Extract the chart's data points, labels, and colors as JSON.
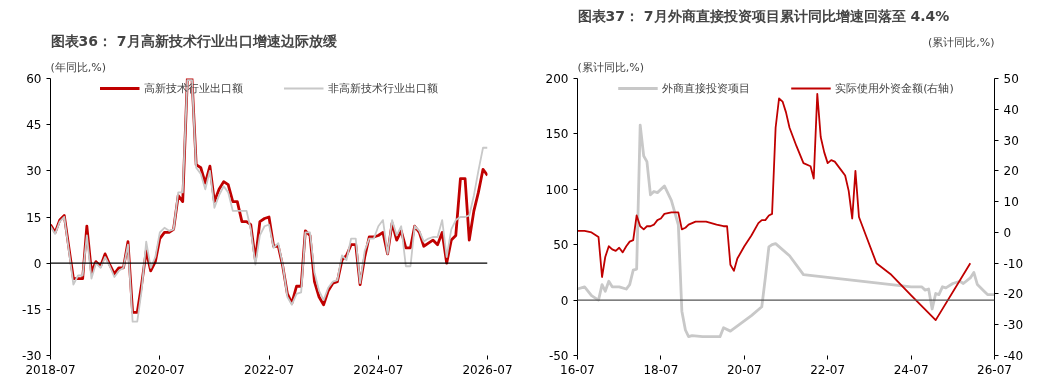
{
  "chart_data": [
    {
      "type": "line",
      "title": "图表36：  7月高新技术行业出口增速边际放缓",
      "ylabel": "(年同比,%)",
      "legend": "top",
      "grid": false,
      "x": [
        "2018-07",
        "2018-08",
        "2018-09",
        "2018-10",
        "2018-11",
        "2018-12",
        "2019-01",
        "2019-02",
        "2019-03",
        "2019-04",
        "2019-05",
        "2019-06",
        "2019-07",
        "2019-08",
        "2019-09",
        "2019-10",
        "2019-11",
        "2019-12",
        "2020-01",
        "2020-02",
        "2020-03",
        "2020-04",
        "2020-05",
        "2020-06",
        "2020-07",
        "2020-08",
        "2020-09",
        "2020-10",
        "2020-11",
        "2020-12",
        "2021-01",
        "2021-02",
        "2021-03",
        "2021-04",
        "2021-05",
        "2021-06",
        "2021-07",
        "2021-08",
        "2021-09",
        "2021-10",
        "2021-11",
        "2021-12",
        "2022-01",
        "2022-02",
        "2022-03",
        "2022-04",
        "2022-05",
        "2022-06",
        "2022-07",
        "2022-08",
        "2022-09",
        "2022-10",
        "2022-11",
        "2022-12",
        "2023-01",
        "2023-02",
        "2023-03",
        "2023-04",
        "2023-05",
        "2023-06",
        "2023-07",
        "2023-08",
        "2023-09",
        "2023-10",
        "2023-11",
        "2023-12",
        "2024-01",
        "2024-02",
        "2024-03",
        "2024-04",
        "2024-05",
        "2024-06",
        "2024-07",
        "2024-08",
        "2024-09",
        "2024-10",
        "2024-11",
        "2024-12",
        "2025-01",
        "2025-02",
        "2025-03",
        "2025-04",
        "2025-05",
        "2025-06",
        "2025-07",
        "2025-08",
        "2025-09",
        "2025-10",
        "2025-11",
        "2025-12",
        "2026-01",
        "2026-02",
        "2026-03",
        "2026-04",
        "2026-05",
        "2026-06",
        "2026-07"
      ],
      "series": [
        {
          "name": "高新技术行业出口额",
          "color": "#c00000",
          "values": [
            12.5,
            10,
            14,
            15.5,
            5,
            -5,
            -5,
            -5,
            12,
            -3,
            0.5,
            -1,
            3,
            -0.5,
            -3.5,
            -1.5,
            -1.5,
            7,
            -16,
            -16,
            -7,
            4,
            -2.5,
            0.5,
            8,
            10,
            10,
            11,
            22,
            20,
            60,
            60,
            32,
            31,
            26,
            31.5,
            20,
            24,
            26.5,
            25.5,
            20,
            20,
            13.5,
            13.5,
            12.5,
            1,
            13.5,
            14.5,
            15,
            5.5,
            5.5,
            -1,
            -10,
            -13,
            -7.5,
            -7.5,
            10.5,
            9,
            -6,
            -11,
            -13.5,
            -9,
            -6.5,
            -6,
            1,
            2.5,
            6,
            6,
            -7,
            2,
            8.5,
            8.5,
            9,
            10,
            3,
            13,
            7.5,
            10.5,
            5,
            5,
            12,
            10,
            5.5,
            6.5,
            7.5,
            6,
            10,
            0,
            7.5,
            9,
            27.5,
            27.5,
            7.5,
            17,
            23,
            30.5,
            28.5
          ]
        },
        {
          "name": "非高新技术行业出口额",
          "color": "#c8c8c8",
          "values": [
            12,
            9.5,
            13.5,
            15,
            4,
            -7,
            -4,
            -4,
            9,
            -5,
            0,
            -1.5,
            2,
            -1,
            -4.5,
            -2.5,
            -1.5,
            6,
            -19,
            -19,
            -9,
            7,
            -1.5,
            2,
            10,
            11.5,
            10.5,
            11,
            23,
            23,
            59.5,
            59.5,
            31,
            29,
            24,
            30,
            18,
            22,
            25,
            23,
            17,
            17,
            17,
            17,
            11,
            -0.5,
            9,
            12,
            12.5,
            5,
            6.5,
            -0.5,
            -11,
            -13.5,
            -10,
            -9.5,
            10,
            10,
            -3,
            -9,
            -12,
            -8,
            -6,
            -5.5,
            2.5,
            1,
            8,
            8,
            -6.5,
            4,
            8,
            8,
            12,
            14,
            3,
            14,
            9,
            12,
            -1,
            -1,
            12,
            10.5,
            7,
            8,
            8.5,
            8.5,
            14,
            2,
            11,
            14,
            15,
            15,
            15.5,
            22,
            30,
            37.5,
            37.5
          ]
        }
      ],
      "xlim": [
        "2018-07",
        "2026-07"
      ],
      "xticks": [
        {
          "value": "2018-07",
          "label": "2018-07"
        },
        {
          "value": "2020-07",
          "label": "2020-07"
        },
        {
          "value": "2022-07",
          "label": "2022-07"
        },
        {
          "value": "2024-07",
          "label": "2024-07"
        },
        {
          "value": "2026-07",
          "label": "2026-07"
        }
      ],
      "ylim": [
        -30,
        60
      ],
      "yticks": [
        -30,
        -15,
        0,
        15,
        30,
        45,
        60
      ],
      "ref_lines": [
        {
          "axis": "y",
          "value": 0,
          "label": null,
          "color": "#000000"
        }
      ]
    },
    {
      "type": "line",
      "title": "图表37：  7月外商直接投资项目累计同比增速回落至 4.4%",
      "ylabel": "(累计同比,%)",
      "y2label": "(累计同比,%)",
      "legend": "top",
      "grid": false,
      "series": [
        {
          "name": "外商直接投资项目",
          "color": "#c8c8c8",
          "x": [
            "2016-07",
            "2016-09",
            "2016-11",
            "2017-01",
            "2017-02",
            "2017-03",
            "2017-04",
            "2017-05",
            "2017-07",
            "2017-09",
            "2017-10",
            "2017-11",
            "2017-12",
            "2018-01",
            "2018-02",
            "2018-03",
            "2018-04",
            "2018-05",
            "2018-06",
            "2018-08",
            "2018-10",
            "2018-12",
            "2019-01",
            "2019-02",
            "2019-03",
            "2019-04",
            "2019-07",
            "2019-10",
            "2019-12",
            "2020-01",
            "2020-03",
            "2020-06",
            "2020-09",
            "2020-12",
            "2021-01",
            "2021-02",
            "2021-03",
            "2021-04",
            "2021-08",
            "2021-12",
            "2024-07",
            "2024-10",
            "2024-11",
            "2024-12",
            "2025-01",
            "2025-02",
            "2025-03",
            "2025-04",
            "2025-05",
            "2025-07",
            "2025-09",
            "2025-10",
            "2025-12",
            "2026-01",
            "2026-02",
            "2026-04",
            "2026-05",
            "2026-07"
          ],
          "values": [
            10,
            12,
            4,
            0,
            14,
            8,
            17,
            12,
            12,
            10,
            14,
            27,
            28,
            158,
            130,
            125,
            95,
            98,
            97,
            103,
            90,
            68,
            -10,
            -27,
            -33,
            -32,
            -33,
            -33,
            -33,
            -25,
            -28,
            -21,
            -14,
            -6,
            20,
            48,
            50,
            51,
            40,
            23,
            12,
            12,
            9,
            10,
            -8,
            6,
            5,
            12,
            11,
            15,
            17,
            15,
            20,
            25,
            14,
            8,
            5,
            5
          ]
        },
        {
          "name": "实际使用外资金额(右轴)",
          "color": "#c00000",
          "axis": "y2",
          "x": [
            "2016-07",
            "2016-09",
            "2016-11",
            "2017-01",
            "2017-02",
            "2017-03",
            "2017-04",
            "2017-05",
            "2017-06",
            "2017-07",
            "2017-08",
            "2017-09",
            "2017-10",
            "2017-11",
            "2017-12",
            "2018-01",
            "2018-02",
            "2018-03",
            "2018-04",
            "2018-05",
            "2018-06",
            "2018-07",
            "2018-08",
            "2018-10",
            "2018-12",
            "2019-01",
            "2019-02",
            "2019-03",
            "2019-05",
            "2019-08",
            "2019-11",
            "2020-01",
            "2020-02",
            "2020-03",
            "2020-04",
            "2020-05",
            "2020-07",
            "2020-09",
            "2020-11",
            "2020-12",
            "2021-01",
            "2021-02",
            "2021-03",
            "2021-04",
            "2021-05",
            "2021-06",
            "2021-07",
            "2021-08",
            "2021-10",
            "2021-12",
            "2022-02",
            "2022-03",
            "2022-04",
            "2022-05",
            "2022-06",
            "2022-07",
            "2022-08",
            "2022-09",
            "2022-11",
            "2022-12",
            "2023-01",
            "2023-02",
            "2023-03",
            "2023-04",
            "2023-06",
            "2023-09",
            "2024-01",
            "2024-07",
            "2025-02",
            "2025-12"
          ],
          "values": [
            0.5,
            0.5,
            0,
            -1.5,
            -14.5,
            -8,
            -4.5,
            -5.5,
            -6,
            -5,
            -6.5,
            -4.5,
            -3,
            -2.5,
            5.5,
            2,
            1,
            2,
            2,
            2.5,
            4,
            4.5,
            6,
            6.5,
            6.5,
            1,
            1.5,
            2.5,
            3.5,
            3.5,
            2.5,
            2,
            2,
            -10.5,
            -12.5,
            -8.5,
            -4.5,
            -1,
            3,
            4,
            4,
            5.5,
            6,
            34,
            43.5,
            42.5,
            39,
            34,
            28,
            22.5,
            21.5,
            17.5,
            45,
            31,
            26,
            22.5,
            23.5,
            23,
            20,
            18.5,
            13.5,
            4.5,
            20,
            5,
            -1,
            -10,
            -13.5,
            -20.5,
            -28.5,
            -10
          ]
        }
      ],
      "xlim": [
        "2016-07",
        "2026-07"
      ],
      "xticks": [
        {
          "value": "2016-07",
          "label": "16-07"
        },
        {
          "value": "2018-07",
          "label": "18-07"
        },
        {
          "value": "2020-07",
          "label": "20-07"
        },
        {
          "value": "2022-07",
          "label": "22-07"
        },
        {
          "value": "2024-07",
          "label": "24-07"
        },
        {
          "value": "2026-07",
          "label": "26-07"
        }
      ],
      "ylim": [
        -50,
        200
      ],
      "yticks": [
        -50,
        0,
        50,
        100,
        150,
        200
      ],
      "y2lim": [
        -40,
        50
      ],
      "y2ticks": [
        -40,
        -30,
        -20,
        -10,
        0,
        10,
        20,
        30,
        40,
        50
      ],
      "ref_lines": [
        {
          "axis": "y",
          "value": 0,
          "label": null,
          "color": "#555555"
        }
      ]
    }
  ]
}
